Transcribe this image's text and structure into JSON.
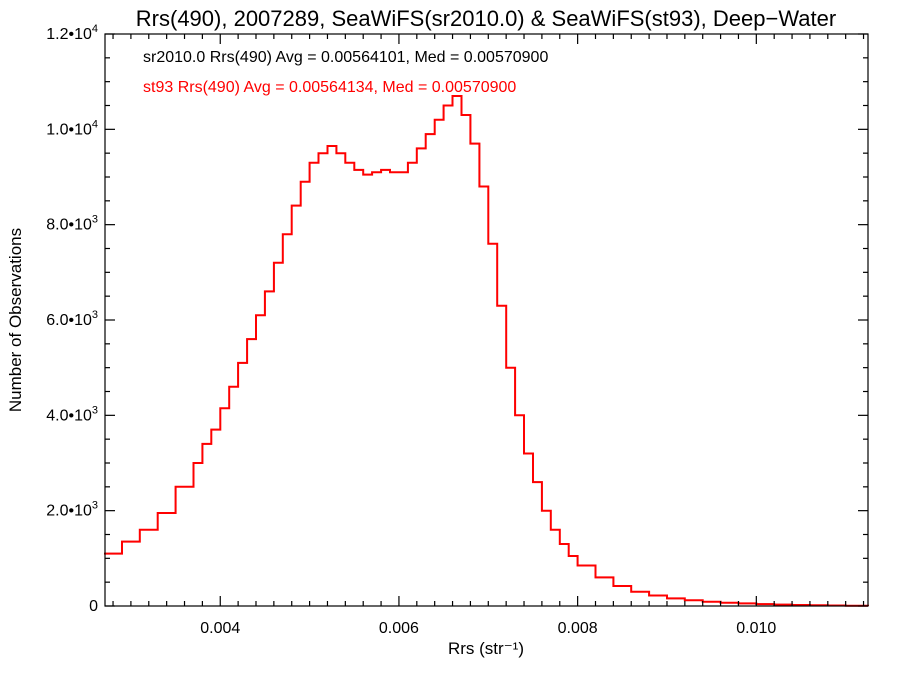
{
  "chart_data": {
    "type": "histogram-step",
    "title": "Rrs(490), 2007289, SeaWiFS(sr2010.0) & SeaWiFS(st93), Deep−Water",
    "xlabel": "Rrs (str⁻¹)",
    "ylabel": "Number of Observations",
    "xlim": [
      0.00271,
      0.01125
    ],
    "ylim": [
      0,
      12000
    ],
    "grid": false,
    "x_ticks": [
      {
        "value": 0.004,
        "label": "0.004"
      },
      {
        "value": 0.006,
        "label": "0.006"
      },
      {
        "value": 0.008,
        "label": "0.008"
      },
      {
        "value": 0.01,
        "label": "0.010"
      }
    ],
    "y_ticks": [
      {
        "value": 0,
        "mant": "0",
        "exp": ""
      },
      {
        "value": 2000,
        "mant": "2.0•10",
        "exp": "3"
      },
      {
        "value": 4000,
        "mant": "4.0•10",
        "exp": "3"
      },
      {
        "value": 6000,
        "mant": "6.0•10",
        "exp": "3"
      },
      {
        "value": 8000,
        "mant": "8.0•10",
        "exp": "3"
      },
      {
        "value": 10000,
        "mant": "1.0•10",
        "exp": "4"
      },
      {
        "value": 12000,
        "mant": "1.2•10",
        "exp": "4"
      }
    ],
    "legend": [
      {
        "text": "sr2010.0 Rrs(490) Avg = 0.00564101, Med = 0.00570900",
        "color": "#000000"
      },
      {
        "text": "st93 Rrs(490) Avg = 0.00564134, Med = 0.00570900",
        "color": "#ff0000"
      }
    ],
    "legend_placement": "top-left",
    "series": [
      {
        "name": "sr2010.0",
        "color": "#000000",
        "x": [
          0.0027,
          0.0029,
          0.0031,
          0.0033,
          0.0035,
          0.0037,
          0.0038,
          0.0039,
          0.004,
          0.0041,
          0.0042,
          0.0043,
          0.0044,
          0.0045,
          0.0046,
          0.0047,
          0.0048,
          0.0049,
          0.005,
          0.0051,
          0.0052,
          0.0053,
          0.0054,
          0.0055,
          0.0056,
          0.0057,
          0.0058,
          0.0059,
          0.006,
          0.0061,
          0.0062,
          0.0063,
          0.0064,
          0.0065,
          0.0066,
          0.0067,
          0.0068,
          0.0069,
          0.007,
          0.0071,
          0.0072,
          0.0073,
          0.0074,
          0.0075,
          0.0076,
          0.0077,
          0.0078,
          0.0079,
          0.008,
          0.0082,
          0.0084,
          0.0086,
          0.0088,
          0.009,
          0.0092,
          0.0094,
          0.0096,
          0.0098,
          0.01,
          0.0102,
          0.0104,
          0.0106,
          0.0108,
          0.011,
          0.01125
        ],
        "y": [
          1100,
          1350,
          1600,
          1950,
          2500,
          3000,
          3400,
          3700,
          4150,
          4600,
          5100,
          5600,
          6100,
          6600,
          7200,
          7800,
          8400,
          8900,
          9300,
          9500,
          9650,
          9500,
          9300,
          9150,
          9050,
          9100,
          9150,
          9100,
          9100,
          9300,
          9600,
          9900,
          10200,
          10500,
          10700,
          10300,
          9700,
          8800,
          7600,
          6300,
          5000,
          4000,
          3200,
          2600,
          2000,
          1600,
          1300,
          1050,
          850,
          600,
          420,
          300,
          220,
          160,
          120,
          90,
          70,
          55,
          40,
          30,
          20,
          15,
          10,
          5,
          0
        ]
      },
      {
        "name": "st93",
        "color": "#ff0000",
        "x": [
          0.0027,
          0.0029,
          0.0031,
          0.0033,
          0.0035,
          0.0037,
          0.0038,
          0.0039,
          0.004,
          0.0041,
          0.0042,
          0.0043,
          0.0044,
          0.0045,
          0.0046,
          0.0047,
          0.0048,
          0.0049,
          0.005,
          0.0051,
          0.0052,
          0.0053,
          0.0054,
          0.0055,
          0.0056,
          0.0057,
          0.0058,
          0.0059,
          0.006,
          0.0061,
          0.0062,
          0.0063,
          0.0064,
          0.0065,
          0.0066,
          0.0067,
          0.0068,
          0.0069,
          0.007,
          0.0071,
          0.0072,
          0.0073,
          0.0074,
          0.0075,
          0.0076,
          0.0077,
          0.0078,
          0.0079,
          0.008,
          0.0082,
          0.0084,
          0.0086,
          0.0088,
          0.009,
          0.0092,
          0.0094,
          0.0096,
          0.0098,
          0.01,
          0.0102,
          0.0104,
          0.0106,
          0.0108,
          0.011,
          0.01125
        ],
        "y": [
          1100,
          1350,
          1600,
          1950,
          2500,
          3000,
          3400,
          3700,
          4150,
          4600,
          5100,
          5600,
          6100,
          6600,
          7200,
          7800,
          8400,
          8900,
          9300,
          9500,
          9650,
          9500,
          9300,
          9150,
          9050,
          9100,
          9150,
          9100,
          9100,
          9300,
          9600,
          9900,
          10200,
          10500,
          10700,
          10300,
          9700,
          8800,
          7600,
          6300,
          5000,
          4000,
          3200,
          2600,
          2000,
          1600,
          1300,
          1050,
          850,
          600,
          420,
          300,
          220,
          160,
          120,
          90,
          70,
          55,
          40,
          30,
          20,
          15,
          10,
          5,
          0
        ]
      }
    ]
  }
}
